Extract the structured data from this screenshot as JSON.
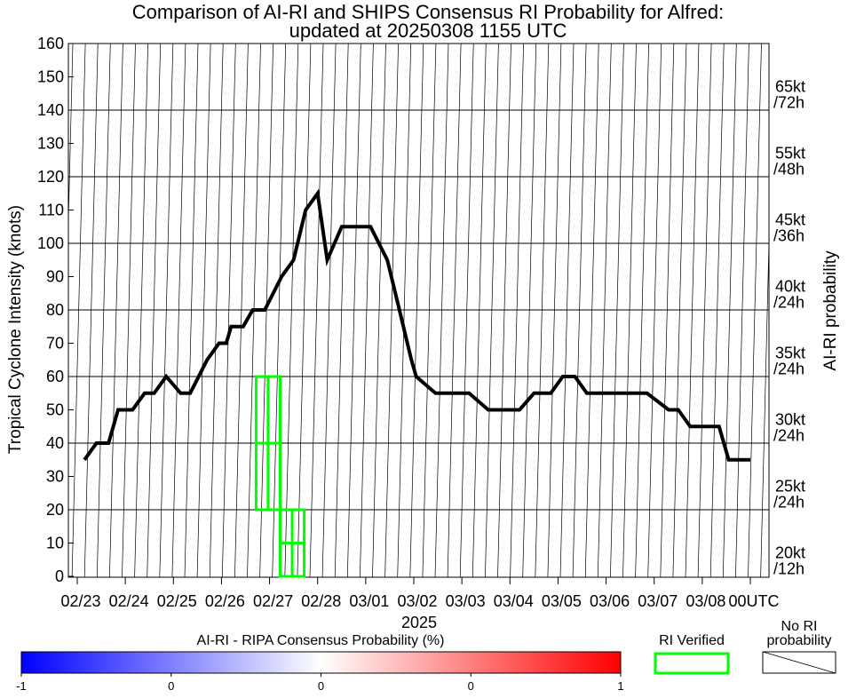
{
  "chart_data": {
    "type": "line",
    "title": "Comparison of AI-RI and SHIPS Consensus RI Probability for Alfred:",
    "subtitle": "updated at 20250308 1155 UTC",
    "ylabel": "Tropical Cyclone Intensity (knots)",
    "y2label": "AI-RI probability",
    "xlabel": "2025",
    "ylim": [
      0,
      160
    ],
    "yticks": [
      0,
      10,
      20,
      30,
      40,
      50,
      60,
      70,
      80,
      90,
      100,
      110,
      120,
      130,
      140,
      150,
      160
    ],
    "xlim": [
      0,
      14
    ],
    "xticks": [
      {
        "x": 0,
        "label": "02/23"
      },
      {
        "x": 1,
        "label": "02/24"
      },
      {
        "x": 2,
        "label": "02/25"
      },
      {
        "x": 3,
        "label": "02/26"
      },
      {
        "x": 4,
        "label": "02/27"
      },
      {
        "x": 5,
        "label": "02/28"
      },
      {
        "x": 6,
        "label": "03/01"
      },
      {
        "x": 7,
        "label": "03/02"
      },
      {
        "x": 8,
        "label": "03/03"
      },
      {
        "x": 9,
        "label": "03/04"
      },
      {
        "x": 10,
        "label": "03/05"
      },
      {
        "x": 11,
        "label": "03/06"
      },
      {
        "x": 12,
        "label": "03/07"
      },
      {
        "x": 13,
        "label": "03/08"
      },
      {
        "x": 14,
        "label": "00UTC"
      }
    ],
    "grid": true,
    "right_labels": [
      {
        "y": 5,
        "line1": "20kt",
        "line2": "/12h"
      },
      {
        "y": 25,
        "line1": "25kt",
        "line2": "/24h"
      },
      {
        "y": 45,
        "line1": "30kt",
        "line2": "/24h"
      },
      {
        "y": 65,
        "line1": "35kt",
        "line2": "/24h"
      },
      {
        "y": 85,
        "line1": "40kt",
        "line2": "/24h"
      },
      {
        "y": 105,
        "line1": "45kt",
        "line2": "/36h"
      },
      {
        "y": 125,
        "line1": "55kt",
        "line2": "/48h"
      },
      {
        "y": 145,
        "line1": "65kt",
        "line2": "/72h"
      }
    ],
    "series": [
      {
        "color": "#000000",
        "x": [
          0.15,
          0.4,
          0.65,
          0.85,
          1.15,
          1.4,
          1.6,
          1.85,
          2.15,
          2.35,
          2.7,
          2.95,
          3.1,
          3.2,
          3.45,
          3.65,
          3.9,
          4.25,
          4.5,
          4.75,
          5.0,
          5.2,
          5.5,
          5.9,
          6.1,
          6.45,
          6.7,
          6.95,
          7.05,
          7.45,
          7.7,
          7.95,
          8.15,
          8.55,
          8.85,
          9.2,
          9.5,
          9.85,
          10.1,
          10.35,
          10.6,
          11.1,
          11.35,
          11.7,
          11.85,
          12.3,
          12.5,
          12.75,
          12.95,
          13.35,
          13.55,
          14.0
        ],
        "y": [
          35,
          40,
          40,
          50,
          50,
          55,
          55,
          60,
          55,
          55,
          65,
          70,
          70,
          75,
          75,
          80,
          80,
          90,
          95,
          110,
          115,
          95,
          105,
          105,
          105,
          95,
          80,
          65,
          60,
          55,
          55,
          55,
          55,
          50,
          50,
          50,
          55,
          55,
          60,
          60,
          55,
          55,
          55,
          55,
          55,
          50,
          50,
          45,
          45,
          45,
          35,
          35
        ]
      }
    ],
    "ri_verified_boxes": [
      {
        "x": [
          3.72,
          3.97
        ],
        "y": [
          20,
          60
        ]
      },
      {
        "x": [
          3.97,
          4.22
        ],
        "y": [
          20,
          60
        ]
      },
      {
        "x": [
          4.22,
          4.47
        ],
        "y": [
          0,
          20
        ]
      },
      {
        "x": [
          4.47,
          4.72
        ],
        "y": [
          0,
          20
        ]
      }
    ],
    "ri_verified_color": "#00ff00",
    "colorbar": {
      "label": "AI-RI - RIPA Consensus Probability (%)",
      "ticks": [
        "-1",
        "0",
        "0",
        "0",
        "1"
      ],
      "colors": [
        "#0000ff",
        "#ffffff",
        "#ff0000"
      ]
    },
    "legend": {
      "ri_verified": "RI Verified",
      "no_ri_line1": "No RI",
      "no_ri_line2": "probability"
    }
  }
}
